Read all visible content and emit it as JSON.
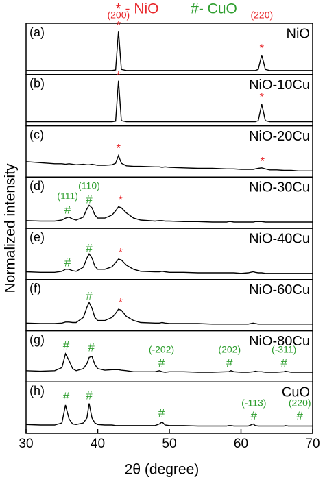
{
  "chart_data": {
    "type": "line",
    "xlabel": "2θ (degree)",
    "ylabel": "Normalized intensity",
    "xlim": [
      30,
      70
    ],
    "xticks": [
      30,
      40,
      50,
      60,
      70
    ],
    "ylim": [
      0,
      1
    ],
    "legend": [
      {
        "text": "* - NiO",
        "color": "#e8262a"
      },
      {
        "text": "#- CuO",
        "color": "#2e9e2e"
      }
    ],
    "x": [
      30,
      32,
      34,
      35,
      35.5,
      36,
      36.5,
      37,
      38,
      38.5,
      38.8,
      39.2,
      39.6,
      40,
      41,
      42,
      42.5,
      42.9,
      43.3,
      44,
      45,
      46,
      48,
      48.6,
      49,
      49.4,
      50,
      52,
      54,
      56,
      58,
      58.3,
      58.6,
      59,
      60,
      61,
      61.7,
      62,
      62.4,
      62.9,
      63.4,
      64,
      65,
      66,
      66.2,
      66.6,
      67,
      68,
      69,
      70
    ],
    "panels": [
      {
        "label": "(a)",
        "name": "NiO",
        "color": "#000000",
        "values": [
          0.08,
          0.08,
          0.08,
          0.08,
          0.08,
          0.08,
          0.08,
          0.08,
          0.08,
          0.08,
          0.08,
          0.08,
          0.08,
          0.08,
          0.08,
          0.08,
          0.09,
          0.85,
          0.1,
          0.08,
          0.08,
          0.08,
          0.08,
          0.08,
          0.08,
          0.08,
          0.08,
          0.08,
          0.08,
          0.08,
          0.08,
          0.08,
          0.08,
          0.08,
          0.08,
          0.08,
          0.08,
          0.08,
          0.1,
          0.38,
          0.1,
          0.08,
          0.08,
          0.08,
          0.08,
          0.08,
          0.08,
          0.08,
          0.08,
          0.08
        ],
        "annotations": [
          {
            "x": 42.9,
            "y": 1.15,
            "text": "(200)",
            "color": "#e8262a"
          },
          {
            "x": 42.9,
            "y": 0.95,
            "text": "*",
            "color": "#e8262a"
          },
          {
            "x": 62.9,
            "y": 1.15,
            "text": "(220)",
            "color": "#e8262a"
          },
          {
            "x": 62.9,
            "y": 0.5,
            "text": "*",
            "color": "#e8262a"
          }
        ]
      },
      {
        "label": "(b)",
        "name": "NiO-10Cu",
        "color": "#000000",
        "values": [
          0.08,
          0.08,
          0.08,
          0.08,
          0.08,
          0.08,
          0.08,
          0.08,
          0.08,
          0.08,
          0.08,
          0.08,
          0.08,
          0.08,
          0.08,
          0.08,
          0.09,
          0.88,
          0.1,
          0.08,
          0.08,
          0.08,
          0.08,
          0.08,
          0.08,
          0.08,
          0.08,
          0.08,
          0.08,
          0.08,
          0.08,
          0.08,
          0.08,
          0.08,
          0.08,
          0.08,
          0.08,
          0.08,
          0.1,
          0.42,
          0.1,
          0.08,
          0.08,
          0.08,
          0.08,
          0.08,
          0.08,
          0.08,
          0.08,
          0.08
        ],
        "annotations": [
          {
            "x": 42.9,
            "y": 0.97,
            "text": "*",
            "color": "#e8262a"
          },
          {
            "x": 62.9,
            "y": 0.55,
            "text": "*",
            "color": "#e8262a"
          }
        ]
      },
      {
        "label": "(c)",
        "name": "NiO-20Cu",
        "color": "#000000",
        "values": [
          0.3,
          0.28,
          0.26,
          0.26,
          0.25,
          0.26,
          0.25,
          0.24,
          0.25,
          0.24,
          0.24,
          0.25,
          0.24,
          0.23,
          0.23,
          0.24,
          0.27,
          0.42,
          0.27,
          0.22,
          0.21,
          0.21,
          0.2,
          0.2,
          0.19,
          0.2,
          0.19,
          0.18,
          0.17,
          0.17,
          0.16,
          0.16,
          0.16,
          0.16,
          0.15,
          0.15,
          0.15,
          0.16,
          0.17,
          0.18,
          0.16,
          0.14,
          0.14,
          0.13,
          0.13,
          0.13,
          0.13,
          0.12,
          0.12,
          0.12
        ],
        "annotations": [
          {
            "x": 42.9,
            "y": 0.55,
            "text": "*",
            "color": "#e8262a"
          },
          {
            "x": 63.0,
            "y": 0.3,
            "text": "*",
            "color": "#e8262a"
          }
        ]
      },
      {
        "label": "(d)",
        "name": "NiO-30Cu",
        "color": "#000000",
        "values": [
          0.15,
          0.14,
          0.14,
          0.16,
          0.2,
          0.22,
          0.18,
          0.16,
          0.22,
          0.38,
          0.45,
          0.4,
          0.26,
          0.2,
          0.2,
          0.26,
          0.34,
          0.42,
          0.4,
          0.3,
          0.2,
          0.16,
          0.14,
          0.15,
          0.15,
          0.14,
          0.14,
          0.13,
          0.13,
          0.12,
          0.12,
          0.13,
          0.13,
          0.12,
          0.12,
          0.12,
          0.12,
          0.13,
          0.13,
          0.13,
          0.12,
          0.12,
          0.12,
          0.12,
          0.12,
          0.12,
          0.12,
          0.12,
          0.12,
          0.12
        ],
        "annotations": [
          {
            "x": 35.8,
            "y": 0.35,
            "text": "#",
            "color": "#2e9e2e"
          },
          {
            "x": 35.8,
            "y": 0.62,
            "text": "(111)",
            "color": "#2e9e2e"
          },
          {
            "x": 38.8,
            "y": 0.55,
            "text": "#",
            "color": "#2e9e2e"
          },
          {
            "x": 38.8,
            "y": 0.82,
            "text": "(110)",
            "color": "#2e9e2e"
          },
          {
            "x": 43.2,
            "y": 0.54,
            "text": "*",
            "color": "#e8262a"
          }
        ]
      },
      {
        "label": "(e)",
        "name": "NiO-40Cu",
        "color": "#000000",
        "values": [
          0.15,
          0.14,
          0.14,
          0.16,
          0.2,
          0.2,
          0.17,
          0.16,
          0.24,
          0.42,
          0.5,
          0.42,
          0.26,
          0.2,
          0.2,
          0.25,
          0.33,
          0.4,
          0.38,
          0.28,
          0.2,
          0.16,
          0.15,
          0.15,
          0.16,
          0.15,
          0.14,
          0.14,
          0.13,
          0.13,
          0.13,
          0.13,
          0.13,
          0.13,
          0.12,
          0.13,
          0.15,
          0.14,
          0.13,
          0.13,
          0.12,
          0.12,
          0.12,
          0.12,
          0.12,
          0.12,
          0.12,
          0.12,
          0.12,
          0.12
        ],
        "annotations": [
          {
            "x": 35.8,
            "y": 0.32,
            "text": "#",
            "color": "#2e9e2e"
          },
          {
            "x": 38.8,
            "y": 0.6,
            "text": "#",
            "color": "#2e9e2e"
          },
          {
            "x": 43.2,
            "y": 0.52,
            "text": "*",
            "color": "#e8262a"
          }
        ]
      },
      {
        "label": "(f)",
        "name": "NiO-60Cu",
        "color": "#000000",
        "values": [
          0.15,
          0.14,
          0.14,
          0.15,
          0.17,
          0.17,
          0.16,
          0.16,
          0.26,
          0.46,
          0.55,
          0.44,
          0.26,
          0.2,
          0.2,
          0.26,
          0.34,
          0.42,
          0.4,
          0.28,
          0.2,
          0.16,
          0.15,
          0.15,
          0.16,
          0.15,
          0.14,
          0.14,
          0.14,
          0.13,
          0.13,
          0.13,
          0.13,
          0.13,
          0.13,
          0.13,
          0.15,
          0.14,
          0.13,
          0.13,
          0.13,
          0.13,
          0.13,
          0.13,
          0.13,
          0.13,
          0.13,
          0.13,
          0.13,
          0.13
        ],
        "annotations": [
          {
            "x": 38.8,
            "y": 0.66,
            "text": "#",
            "color": "#2e9e2e"
          },
          {
            "x": 43.2,
            "y": 0.54,
            "text": "*",
            "color": "#e8262a"
          }
        ]
      },
      {
        "label": "(g)",
        "name": "NiO-80Cu",
        "color": "#000000",
        "values": [
          0.22,
          0.21,
          0.22,
          0.28,
          0.55,
          0.42,
          0.26,
          0.22,
          0.26,
          0.36,
          0.48,
          0.5,
          0.34,
          0.26,
          0.23,
          0.24,
          0.24,
          0.24,
          0.23,
          0.22,
          0.2,
          0.2,
          0.2,
          0.22,
          0.2,
          0.19,
          0.2,
          0.2,
          0.19,
          0.19,
          0.2,
          0.2,
          0.22,
          0.2,
          0.19,
          0.19,
          0.2,
          0.21,
          0.2,
          0.2,
          0.19,
          0.19,
          0.19,
          0.2,
          0.21,
          0.2,
          0.19,
          0.19,
          0.19,
          0.19
        ],
        "annotations": [
          {
            "x": 35.6,
            "y": 0.7,
            "text": "#",
            "color": "#2e9e2e"
          },
          {
            "x": 39.1,
            "y": 0.66,
            "text": "#",
            "color": "#2e9e2e"
          },
          {
            "x": 48.9,
            "y": 0.36,
            "text": "#",
            "color": "#2e9e2e"
          },
          {
            "x": 48.9,
            "y": 0.62,
            "text": "(-202)",
            "color": "#2e9e2e"
          },
          {
            "x": 58.4,
            "y": 0.36,
            "text": "#",
            "color": "#2e9e2e"
          },
          {
            "x": 58.4,
            "y": 0.62,
            "text": "(202)",
            "color": "#2e9e2e"
          },
          {
            "x": 66.0,
            "y": 0.36,
            "text": "#",
            "color": "#2e9e2e"
          },
          {
            "x": 66.0,
            "y": 0.62,
            "text": "(-311)",
            "color": "#2e9e2e"
          }
        ]
      },
      {
        "label": "(h)",
        "name": "CuO",
        "color": "#000000",
        "values": [
          0.17,
          0.16,
          0.16,
          0.2,
          0.55,
          0.28,
          0.18,
          0.17,
          0.2,
          0.3,
          0.58,
          0.3,
          0.2,
          0.17,
          0.16,
          0.16,
          0.15,
          0.15,
          0.15,
          0.15,
          0.15,
          0.15,
          0.15,
          0.18,
          0.22,
          0.16,
          0.15,
          0.15,
          0.14,
          0.14,
          0.14,
          0.15,
          0.15,
          0.14,
          0.14,
          0.14,
          0.18,
          0.15,
          0.14,
          0.14,
          0.14,
          0.14,
          0.14,
          0.14,
          0.15,
          0.14,
          0.14,
          0.14,
          0.14,
          0.14
        ],
        "annotations": [
          {
            "x": 35.6,
            "y": 0.7,
            "text": "#",
            "color": "#2e9e2e"
          },
          {
            "x": 38.8,
            "y": 0.72,
            "text": "#",
            "color": "#2e9e2e"
          },
          {
            "x": 48.9,
            "y": 0.38,
            "text": "#",
            "color": "#2e9e2e"
          },
          {
            "x": 61.8,
            "y": 0.33,
            "text": "#",
            "color": "#2e9e2e"
          },
          {
            "x": 61.8,
            "y": 0.58,
            "text": "(-113)",
            "color": "#2e9e2e"
          },
          {
            "x": 68.2,
            "y": 0.33,
            "text": "#",
            "color": "#2e9e2e"
          },
          {
            "x": 68.2,
            "y": 0.58,
            "text": "(220)",
            "color": "#2e9e2e"
          }
        ]
      }
    ]
  }
}
